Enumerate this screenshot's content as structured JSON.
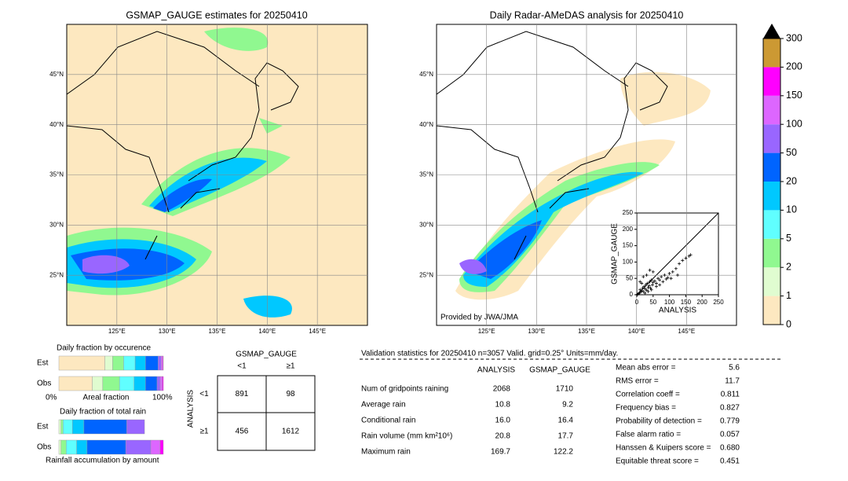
{
  "maps": [
    {
      "title": "GSMAP_GAUGE estimates for 20250410",
      "xlim": [
        120,
        150
      ],
      "ylim": [
        20,
        50
      ],
      "xticks": [
        {
          "value": 125,
          "label": "125°E"
        },
        {
          "value": 130,
          "label": "130°E"
        },
        {
          "value": 135,
          "label": "135°E"
        },
        {
          "value": 140,
          "label": "140°E"
        },
        {
          "value": 145,
          "label": "145°E"
        }
      ],
      "yticks": [
        {
          "value": 25,
          "label": "25°N"
        },
        {
          "value": 30,
          "label": "30°N"
        },
        {
          "value": 35,
          "label": "35°N"
        },
        {
          "value": 40,
          "label": "40°N"
        },
        {
          "value": 45,
          "label": "45°N"
        }
      ]
    },
    {
      "title": "Daily Radar-AMeDAS analysis for 20250410",
      "credit": "Provided by JWA/JMA",
      "xlim": [
        120,
        150
      ],
      "ylim": [
        20,
        50
      ],
      "xticks": [
        {
          "value": 125,
          "label": "125°E"
        },
        {
          "value": 130,
          "label": "130°E"
        },
        {
          "value": 135,
          "label": "135°E"
        },
        {
          "value": 140,
          "label": "140°E"
        },
        {
          "value": 145,
          "label": "145°E"
        }
      ],
      "yticks": [
        {
          "value": 25,
          "label": "25°N"
        },
        {
          "value": 30,
          "label": "30°N"
        },
        {
          "value": 35,
          "label": "35°N"
        },
        {
          "value": 40,
          "label": "40°N"
        },
        {
          "value": 45,
          "label": "45°N"
        }
      ]
    }
  ],
  "colorbar": {
    "levels": [
      0,
      1,
      2,
      5,
      10,
      20,
      50,
      100,
      150,
      200,
      300
    ],
    "colors": [
      "#fde8c0",
      "#e0fcd0",
      "#90f890",
      "#60ffff",
      "#00c8ff",
      "#0064ff",
      "#9966ff",
      "#dd66ff",
      "#ff00ff",
      "#cc9933"
    ],
    "extend_color": "#000000"
  },
  "scatter": {
    "xlabel": "ANALYSIS",
    "ylabel": "GSMAP_GAUGE",
    "xlim": [
      0,
      250
    ],
    "ylim": [
      0,
      250
    ],
    "xticks": [
      0,
      50,
      100,
      150,
      200,
      250
    ],
    "yticks": [
      0,
      50,
      100,
      150,
      200,
      250
    ],
    "x": [
      2,
      5,
      8,
      10,
      12,
      15,
      18,
      20,
      22,
      25,
      28,
      30,
      32,
      35,
      38,
      40,
      42,
      45,
      48,
      50,
      55,
      60,
      65,
      70,
      75,
      80,
      85,
      90,
      95,
      100,
      110,
      120,
      130,
      140,
      150,
      160,
      165,
      10,
      20,
      30,
      40,
      50,
      60,
      15,
      25,
      35,
      45,
      70,
      105,
      125
    ],
    "y": [
      1,
      3,
      5,
      15,
      8,
      12,
      20,
      10,
      25,
      18,
      30,
      14,
      35,
      22,
      28,
      40,
      20,
      45,
      30,
      38,
      42,
      35,
      50,
      45,
      55,
      40,
      60,
      48,
      52,
      65,
      70,
      80,
      95,
      105,
      112,
      118,
      122,
      40,
      55,
      60,
      75,
      70,
      25,
      35,
      5,
      10,
      15,
      30,
      50,
      60
    ]
  },
  "occurrence": {
    "title": "Daily fraction by occurence",
    "xlabel": "Areal fraction",
    "xmin_label": "0%",
    "xmax_label": "100%",
    "bars": [
      {
        "label": "Est",
        "values": [
          44,
          7.5,
          10.5,
          11,
          10,
          12,
          3,
          1.5,
          0.5,
          0
        ]
      },
      {
        "label": "Obs",
        "values": [
          32,
          10,
          16,
          14,
          11,
          11,
          3,
          2,
          1,
          0
        ]
      }
    ]
  },
  "amount": {
    "title": "Daily fraction of total rain",
    "xlabel": "Rainfall accumulation by amount",
    "bars": [
      {
        "label": "Est",
        "values": [
          0,
          2,
          2,
          9,
          11,
          41,
          17,
          0,
          0,
          0
        ]
      },
      {
        "label": "Obs",
        "values": [
          0,
          2,
          5,
          10,
          10,
          37,
          24,
          9,
          3,
          0
        ]
      }
    ]
  },
  "contingency": {
    "title": "GSMAP_GAUGE",
    "columns": [
      "<1",
      "≥1"
    ],
    "row_title": "ANALYSIS",
    "rows": [
      "<1",
      "≥1"
    ],
    "cells": [
      [
        891,
        98
      ],
      [
        456,
        1612
      ]
    ]
  },
  "stats": {
    "header": "Validation statistics for 20250410  n=3057 Valid. grid=0.25° Units=mm/day.",
    "columns": [
      "ANALYSIS",
      "GSMAP_GAUGE"
    ],
    "rows": [
      {
        "label": "Num of gridpoints raining",
        "values": [
          2068,
          1710
        ]
      },
      {
        "label": "Average rain",
        "values": [
          10.8,
          9.2
        ]
      },
      {
        "label": "Conditional rain",
        "values": [
          {
            "value": 16,
            "label": "16.0"
          },
          16.4
        ]
      },
      {
        "label": "Rain volume (mm km²10⁶)",
        "values": [
          20.8,
          17.7
        ]
      },
      {
        "label": "Maximum rain",
        "values": [
          169.7,
          122.2
        ]
      }
    ],
    "scores": [
      {
        "label": "Mean abs error =",
        "value": 5.6
      },
      {
        "label": "RMS error =",
        "value": 11.7
      },
      {
        "label": "Correlation coeff =",
        "value": 0.811
      },
      {
        "label": "Frequency bias =",
        "value": 0.827
      },
      {
        "label": "Probability of detection =",
        "value": 0.779
      },
      {
        "label": "False alarm ratio =",
        "value": 0.057
      },
      {
        "label": "Hanssen & Kuipers score =",
        "value": {
          "value": 0.68,
          "label": "0.680"
        }
      },
      {
        "label": "Equitable threat score =",
        "value": 0.451
      }
    ]
  }
}
